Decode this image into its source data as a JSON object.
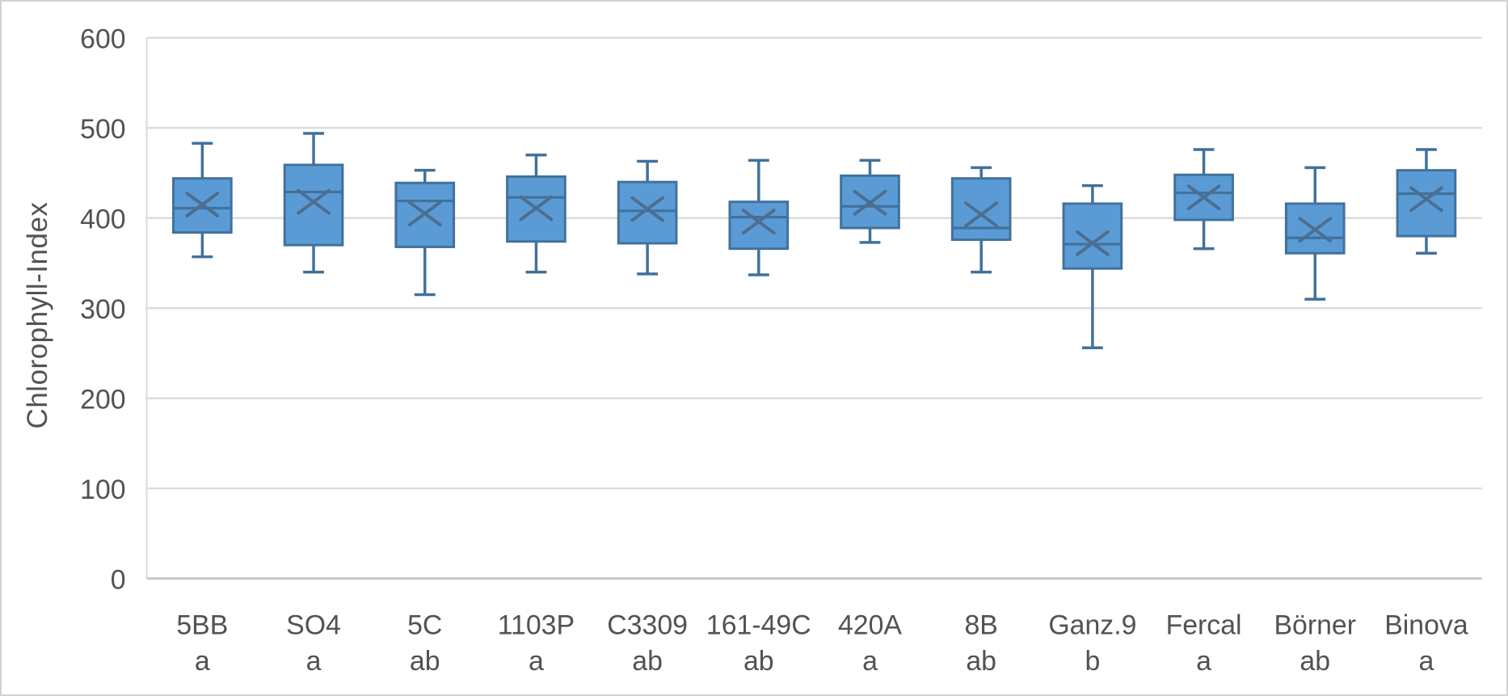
{
  "chart_data": {
    "type": "box",
    "title": "",
    "xlabel": "",
    "ylabel": "Chlorophyll-Index",
    "ylim": [
      0,
      600
    ],
    "yticks": [
      600,
      500,
      400,
      300,
      200,
      100,
      0
    ],
    "grid": true,
    "legend": "none",
    "categories": [
      {
        "label": "5BB",
        "group": "a",
        "min": 357,
        "q1": 384,
        "median": 411,
        "mean": 415,
        "q3": 444,
        "max": 483
      },
      {
        "label": "SO4",
        "group": "a",
        "min": 340,
        "q1": 370,
        "median": 429,
        "mean": 418,
        "q3": 459,
        "max": 494
      },
      {
        "label": "5C",
        "group": "ab",
        "min": 315,
        "q1": 368,
        "median": 419,
        "mean": 405,
        "q3": 439,
        "max": 453
      },
      {
        "label": "1103P",
        "group": "a",
        "min": 340,
        "q1": 374,
        "median": 423,
        "mean": 411,
        "q3": 446,
        "max": 470
      },
      {
        "label": "C3309",
        "group": "ab",
        "min": 338,
        "q1": 372,
        "median": 408,
        "mean": 410,
        "q3": 440,
        "max": 463
      },
      {
        "label": "161-49C",
        "group": "ab",
        "min": 337,
        "q1": 366,
        "median": 401,
        "mean": 396,
        "q3": 418,
        "max": 464
      },
      {
        "label": "420A",
        "group": "a",
        "min": 373,
        "q1": 389,
        "median": 413,
        "mean": 417,
        "q3": 447,
        "max": 464
      },
      {
        "label": "8B",
        "group": "ab",
        "min": 340,
        "q1": 376,
        "median": 389,
        "mean": 404,
        "q3": 444,
        "max": 456
      },
      {
        "label": "Ganz.9",
        "group": "b",
        "min": 256,
        "q1": 344,
        "median": 371,
        "mean": 372,
        "q3": 416,
        "max": 436
      },
      {
        "label": "Fercal",
        "group": "a",
        "min": 366,
        "q1": 398,
        "median": 428,
        "mean": 423,
        "q3": 448,
        "max": 476
      },
      {
        "label": "Börner",
        "group": "ab",
        "min": 310,
        "q1": 361,
        "median": 378,
        "mean": 387,
        "q3": 416,
        "max": 456
      },
      {
        "label": "Binova",
        "group": "a",
        "min": 361,
        "q1": 380,
        "median": 427,
        "mean": 421,
        "q3": 453,
        "max": 476
      }
    ],
    "colors": {
      "box_fill": "#5B9BD5",
      "box_border": "#41719C",
      "median_line": "#41719C",
      "mean_marker": "#4C6E91",
      "gridline": "#D9D9D9",
      "axis_line": "#BFBFBF",
      "text": "#525252",
      "frame_border": "#D2D2D2",
      "background": "#FFFFFF"
    }
  }
}
